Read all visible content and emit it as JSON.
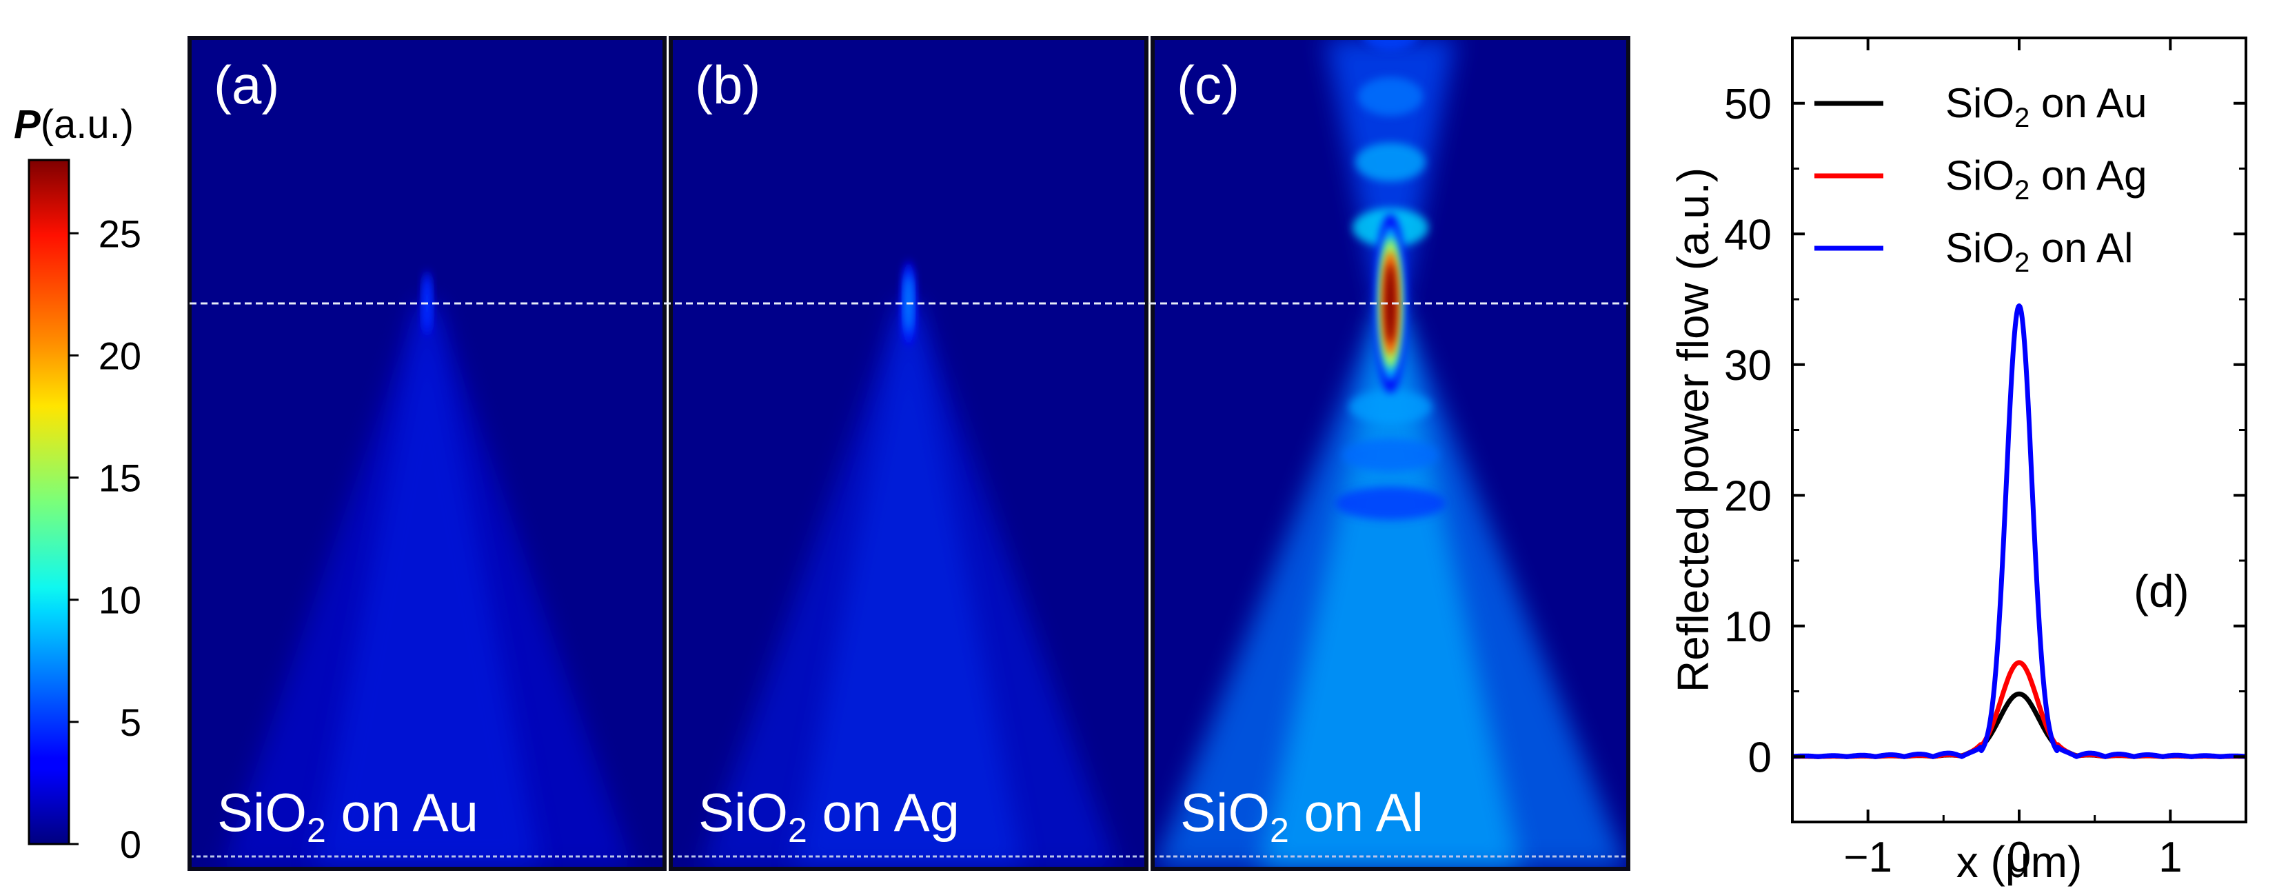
{
  "colorbar": {
    "label_prefix": "P",
    "label_suffix": "(a.u.)",
    "ticks": [
      0,
      5,
      10,
      15,
      20,
      25
    ],
    "range": [
      0,
      28
    ],
    "colormap": "jet"
  },
  "panels": [
    {
      "letter": "(a)",
      "label_main": "SiO",
      "label_sub": "2",
      "label_rest": " on Au",
      "peak": 5
    },
    {
      "letter": "(b)",
      "label_main": "SiO",
      "label_sub": "2",
      "label_rest": " on Ag",
      "peak": 7
    },
    {
      "letter": "(c)",
      "label_main": "SiO",
      "label_sub": "2",
      "label_rest": " on Al",
      "peak": 28
    }
  ],
  "line_panel_letter": "(d)",
  "chart_data": {
    "type": "line",
    "xlabel": "x (μm)",
    "ylabel": "Reflected power flow (a.u.)",
    "xlim": [
      -1.5,
      1.5
    ],
    "ylim": [
      -5,
      55
    ],
    "xticks": [
      -1,
      0,
      1
    ],
    "xtick_labels": [
      "−1",
      "0",
      "1"
    ],
    "yticks": [
      0,
      10,
      20,
      30,
      40,
      50
    ],
    "legend_placement": "top-right",
    "series": [
      {
        "name_main": "SiO",
        "name_sub": "2",
        "name_rest": " on Au",
        "color": "#000000",
        "peak": 4.8,
        "width": 0.13,
        "ripple": 0.25
      },
      {
        "name_main": "SiO",
        "name_sub": "2",
        "name_rest": " on Ag",
        "color": "#ff0000",
        "peak": 7.2,
        "width": 0.12,
        "ripple": 0.3
      },
      {
        "name_main": "SiO",
        "name_sub": "2",
        "name_rest": " on Al",
        "color": "#0000ff",
        "peak": 34.5,
        "width": 0.085,
        "ripple": 0.6
      }
    ]
  }
}
